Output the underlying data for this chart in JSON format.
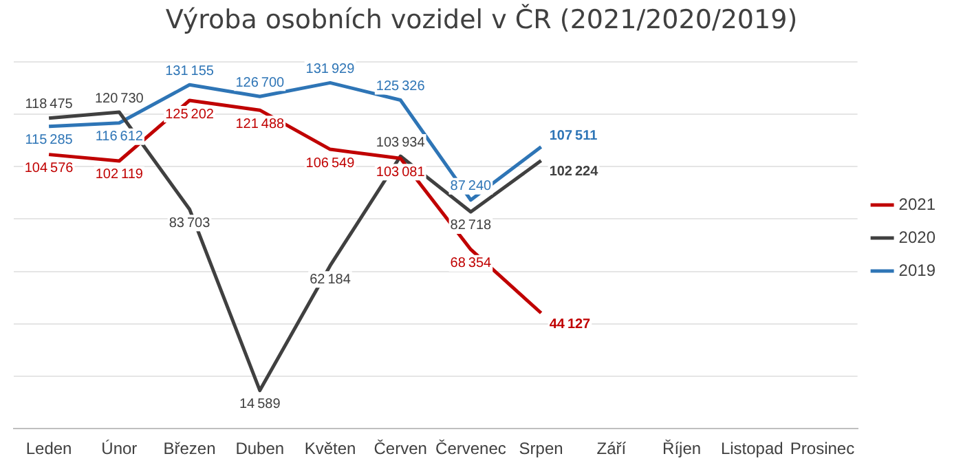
{
  "chart_data": {
    "type": "line",
    "title": "Výroba osobních vozidel v ČR (2021/2020/2019)",
    "categories": [
      "Leden",
      "Únor",
      "Březen",
      "Duben",
      "Květen",
      "Červen",
      "Červenec",
      "Srpen",
      "Září",
      "Říjen",
      "Listopad",
      "Prosinec"
    ],
    "series": [
      {
        "name": "2021",
        "color": "#c00000",
        "values": [
          104576,
          102119,
          125202,
          121488,
          106549,
          103081,
          68354,
          44127,
          null,
          null,
          null,
          null
        ]
      },
      {
        "name": "2020",
        "color": "#404040",
        "values": [
          118475,
          120730,
          83703,
          14589,
          62184,
          103934,
          82718,
          102224,
          null,
          null,
          null,
          null
        ]
      },
      {
        "name": "2019",
        "color": "#2e75b6",
        "values": [
          115285,
          116612,
          131155,
          126700,
          131929,
          125326,
          87240,
          107511,
          null,
          null,
          null,
          null
        ]
      }
    ],
    "ylim": [
      0,
      140000
    ],
    "yticks": [
      {
        "value": 0,
        "label": null
      },
      {
        "value": 20000,
        "label": null
      },
      {
        "value": 40000,
        "label": null
      },
      {
        "value": 60000,
        "label": null
      },
      {
        "value": 80000,
        "label": null
      },
      {
        "value": 100000,
        "label": null
      },
      {
        "value": 120000,
        "label": null
      },
      {
        "value": 140000,
        "label": null
      }
    ],
    "tick_labels": "x",
    "grid": "y",
    "legend": "right",
    "marker": "none",
    "line_style": "solid",
    "data_labels": true
  }
}
